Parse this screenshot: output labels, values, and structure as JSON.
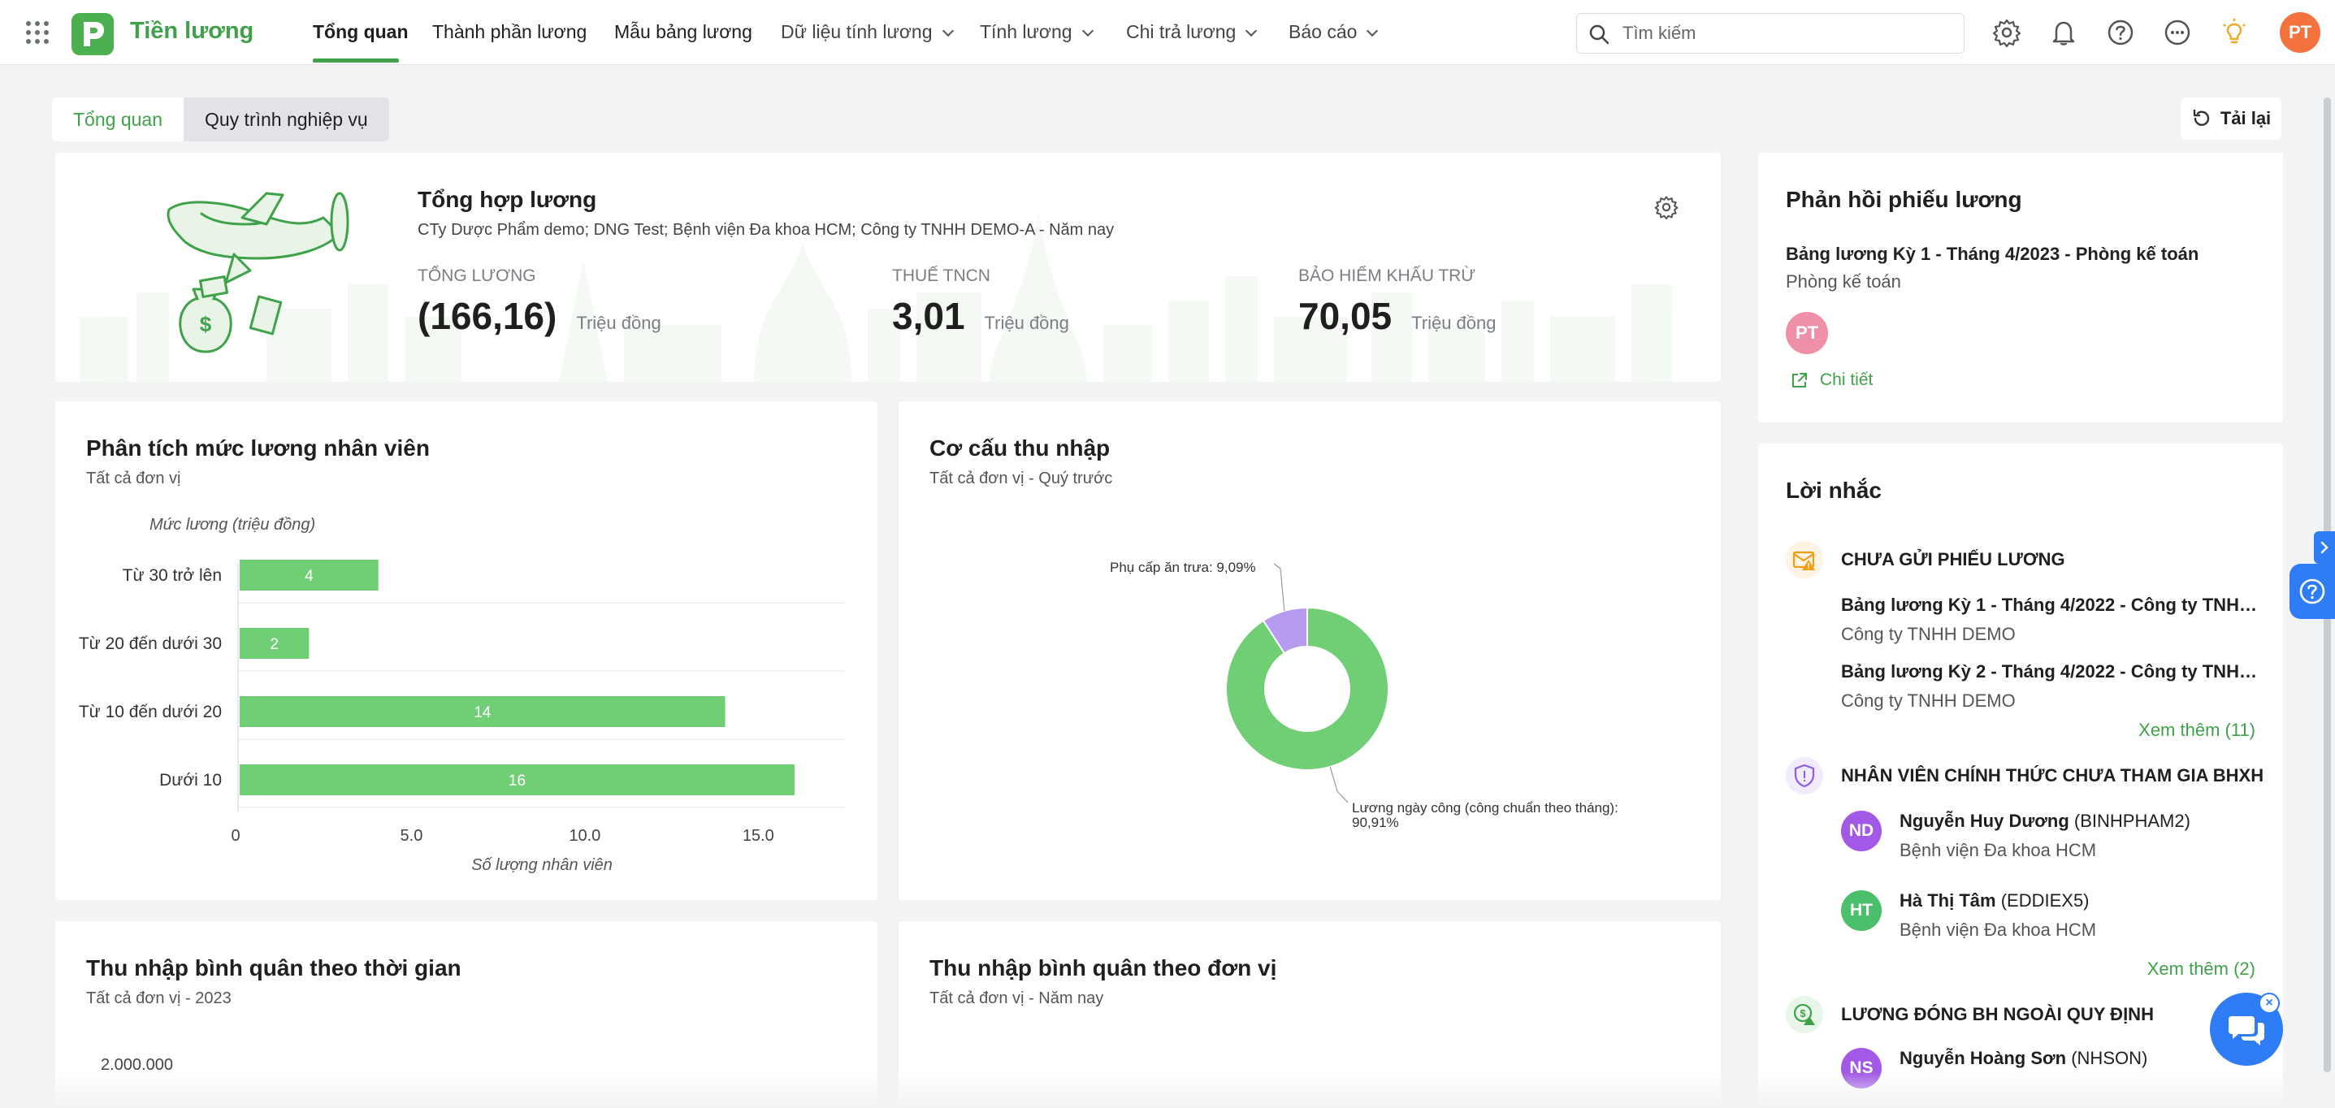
{
  "app": {
    "name": "Tiền lương",
    "logo_letter": "P",
    "user_initials": "PT"
  },
  "nav": {
    "items": [
      {
        "label": "Tổng quan"
      },
      {
        "label": "Thành phần lương"
      },
      {
        "label": "Mẫu bảng lương"
      },
      {
        "label": "Dữ liệu tính lương"
      },
      {
        "label": "Tính lương"
      },
      {
        "label": "Chi trả lương"
      },
      {
        "label": "Báo cáo"
      }
    ]
  },
  "search": {
    "placeholder": "Tìm kiếm"
  },
  "tabs": {
    "overview": "Tổng quan",
    "process": "Quy trình nghiệp vụ"
  },
  "reload_label": "Tải lại",
  "summary": {
    "title": "Tổng hợp lương",
    "subtitle": "CTy Dược Phẩm demo; DNG Test; Bệnh viện Đa khoa HCM; Công ty TNHH DEMO-A - Năm nay",
    "stats": [
      {
        "label": "TỔNG LƯƠNG",
        "value": "(166,16)",
        "unit": "Triệu đồng"
      },
      {
        "label": "THUẾ TNCN",
        "value": "3,01",
        "unit": "Triệu đồng"
      },
      {
        "label": "BẢO HIỂM KHẤU TRỪ",
        "value": "70,05",
        "unit": "Triệu đồng"
      }
    ]
  },
  "feedback": {
    "title": "Phản hồi phiếu lương",
    "item_title": "Bảng lương Kỳ 1 - Tháng 4/2023 - Phòng kế toán",
    "item_dept": "Phòng kế toán",
    "avatar": "PT",
    "detail_label": "Chi tiết"
  },
  "analysis": {
    "title": "Phân tích mức lương nhân viên",
    "subtitle": "Tất cả đơn vị",
    "chart_data": {
      "type": "bar",
      "orientation": "horizontal",
      "categories": [
        "Từ 30 trở lên",
        "Từ 20 đến dưới 30",
        "Từ 10 đến dưới 20",
        "Dưới 10"
      ],
      "values": [
        4,
        2,
        14,
        16
      ],
      "ylabel": "Mức lương (triệu đồng)",
      "xlabel": "Số lượng nhân viên",
      "xticks": [
        "0",
        "5.0",
        "10.0",
        "15.0"
      ],
      "xlim": [
        0,
        17.5
      ],
      "color": "#70cf74",
      "grid": true
    }
  },
  "structure": {
    "title": "Cơ cấu thu nhập",
    "subtitle": "Tất cả đơn vị - Quý trước",
    "chart_data": {
      "type": "pie",
      "donut": true,
      "slices": [
        {
          "label": "Lương ngày công (công chuẩn theo tháng): 90,91%",
          "value": 90.91,
          "color": "#70cf74"
        },
        {
          "label": "Phụ cấp ăn trưa: 9,09%",
          "value": 9.09,
          "color": "#b59cf0"
        }
      ]
    }
  },
  "reminders": {
    "title": "Lời nhắc",
    "sections": [
      {
        "heading": "CHƯA GỬI PHIẾU LƯƠNG",
        "items": [
          {
            "title": "Bảng lương Kỳ 1 - Tháng 4/2022 - Công ty TNHH ...",
            "org": "Công ty TNHH DEMO"
          },
          {
            "title": "Bảng lương Kỳ 2 - Tháng 4/2022 - Công ty TNHH ...",
            "org": "Công ty TNHH DEMO"
          }
        ],
        "see_more": "Xem thêm (11)"
      },
      {
        "heading": "NHÂN VIÊN CHÍNH THỨC CHƯA THAM GIA BHXH",
        "people": [
          {
            "initials": "ND",
            "name": "Nguyễn Huy Dương",
            "code": "(BINHPHAM2)",
            "org": "Bệnh viện Đa khoa HCM",
            "color": "#a259e6"
          },
          {
            "initials": "HT",
            "name": "Hà Thị Tâm",
            "code": "(EDDIEX5)",
            "org": "Bệnh viện Đa khoa HCM",
            "color": "#4cbf6a"
          }
        ],
        "see_more": "Xem thêm (2)"
      },
      {
        "heading": "LƯƠNG ĐÓNG BH NGOÀI QUY ĐỊNH",
        "people": [
          {
            "initials": "NS",
            "name": "Nguyễn Hoàng Sơn",
            "code": "(NHSON)",
            "color": "#a259e6"
          }
        ]
      }
    ]
  },
  "avg_time": {
    "title": "Thu nhập bình quân theo thời gian",
    "subtitle": "Tất cả đơn vị - 2023",
    "y_top": "2.000.000"
  },
  "avg_unit": {
    "title": "Thu nhập bình quân theo đơn vị",
    "subtitle": "Tất cả đơn vị - Năm nay"
  },
  "colors": {
    "brand": "#3fa14a",
    "accent_blue": "#2e7cf6",
    "avatar_orange": "#f4723e"
  }
}
